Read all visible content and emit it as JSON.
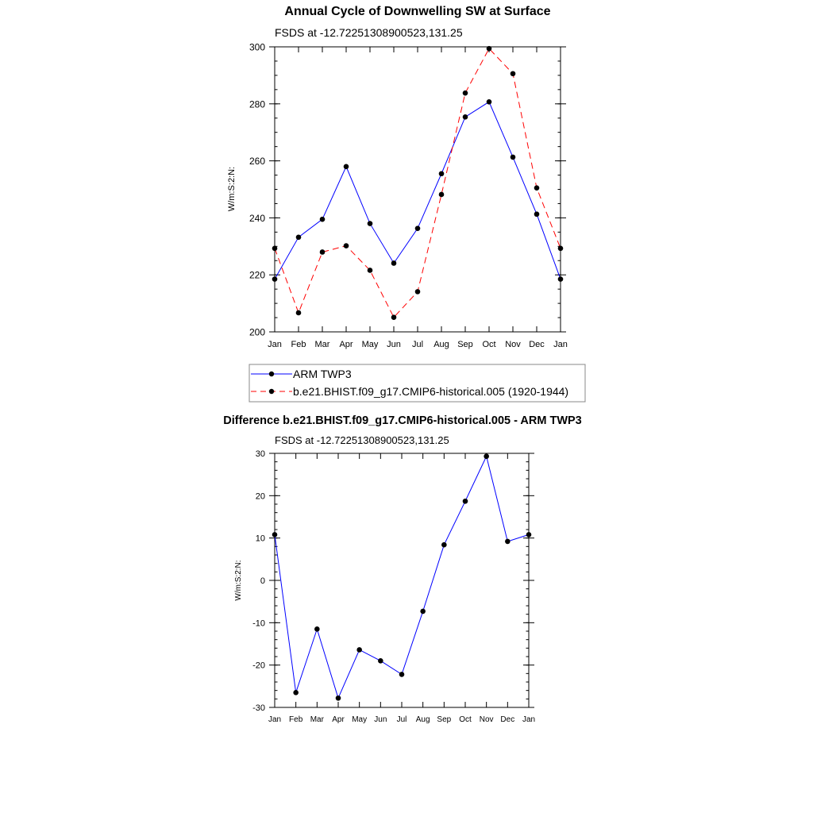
{
  "chart_data": [
    {
      "type": "line",
      "title": "Annual Cycle of Downwelling SW at Surface",
      "subtitle": "FSDS at -12.72251308900523,131.25",
      "xlabel": "",
      "ylabel": "W/m:S:2:N:",
      "categories": [
        "Jan",
        "Feb",
        "Mar",
        "Apr",
        "May",
        "Jun",
        "Jul",
        "Aug",
        "Sep",
        "Oct",
        "Nov",
        "Dec",
        "Jan"
      ],
      "ylim": [
        200,
        300
      ],
      "yticks": [
        200,
        220,
        240,
        260,
        280,
        300
      ],
      "yminor": 5,
      "grid": false,
      "legend_position": "bottom",
      "series": [
        {
          "name": "ARM TWP3",
          "color": "#0000ff",
          "dash": "solid",
          "values": [
            218.5,
            233.2,
            239.5,
            258.0,
            238.0,
            224.1,
            236.3,
            255.5,
            275.4,
            280.7,
            261.3,
            241.3,
            218.5
          ]
        },
        {
          "name": "b.e21.BHIST.f09_g17.CMIP6-historical.005 (1920-1944)",
          "color": "#ff0000",
          "dash": "dashed",
          "values": [
            229.3,
            206.7,
            228.0,
            230.2,
            221.6,
            205.1,
            214.1,
            248.2,
            283.8,
            299.4,
            290.6,
            250.5,
            229.3
          ]
        }
      ]
    },
    {
      "type": "line",
      "title": "Difference b.e21.BHIST.f09_g17.CMIP6-historical.005 - ARM TWP3",
      "subtitle": "FSDS at -12.72251308900523,131.25",
      "xlabel": "",
      "ylabel": "W/m:S:2:N:",
      "categories": [
        "Jan",
        "Feb",
        "Mar",
        "Apr",
        "May",
        "Jun",
        "Jul",
        "Aug",
        "Sep",
        "Oct",
        "Nov",
        "Dec",
        "Jan"
      ],
      "ylim": [
        -30,
        30
      ],
      "yticks": [
        -30,
        -20,
        -10,
        0,
        10,
        20,
        30
      ],
      "yminor": 2,
      "grid": false,
      "series": [
        {
          "name": "Difference",
          "color": "#0000ff",
          "dash": "solid",
          "values": [
            10.8,
            -26.5,
            -11.5,
            -27.8,
            -16.4,
            -19.0,
            -22.2,
            -7.3,
            8.4,
            18.7,
            29.3,
            9.2,
            10.8
          ]
        }
      ]
    }
  ]
}
